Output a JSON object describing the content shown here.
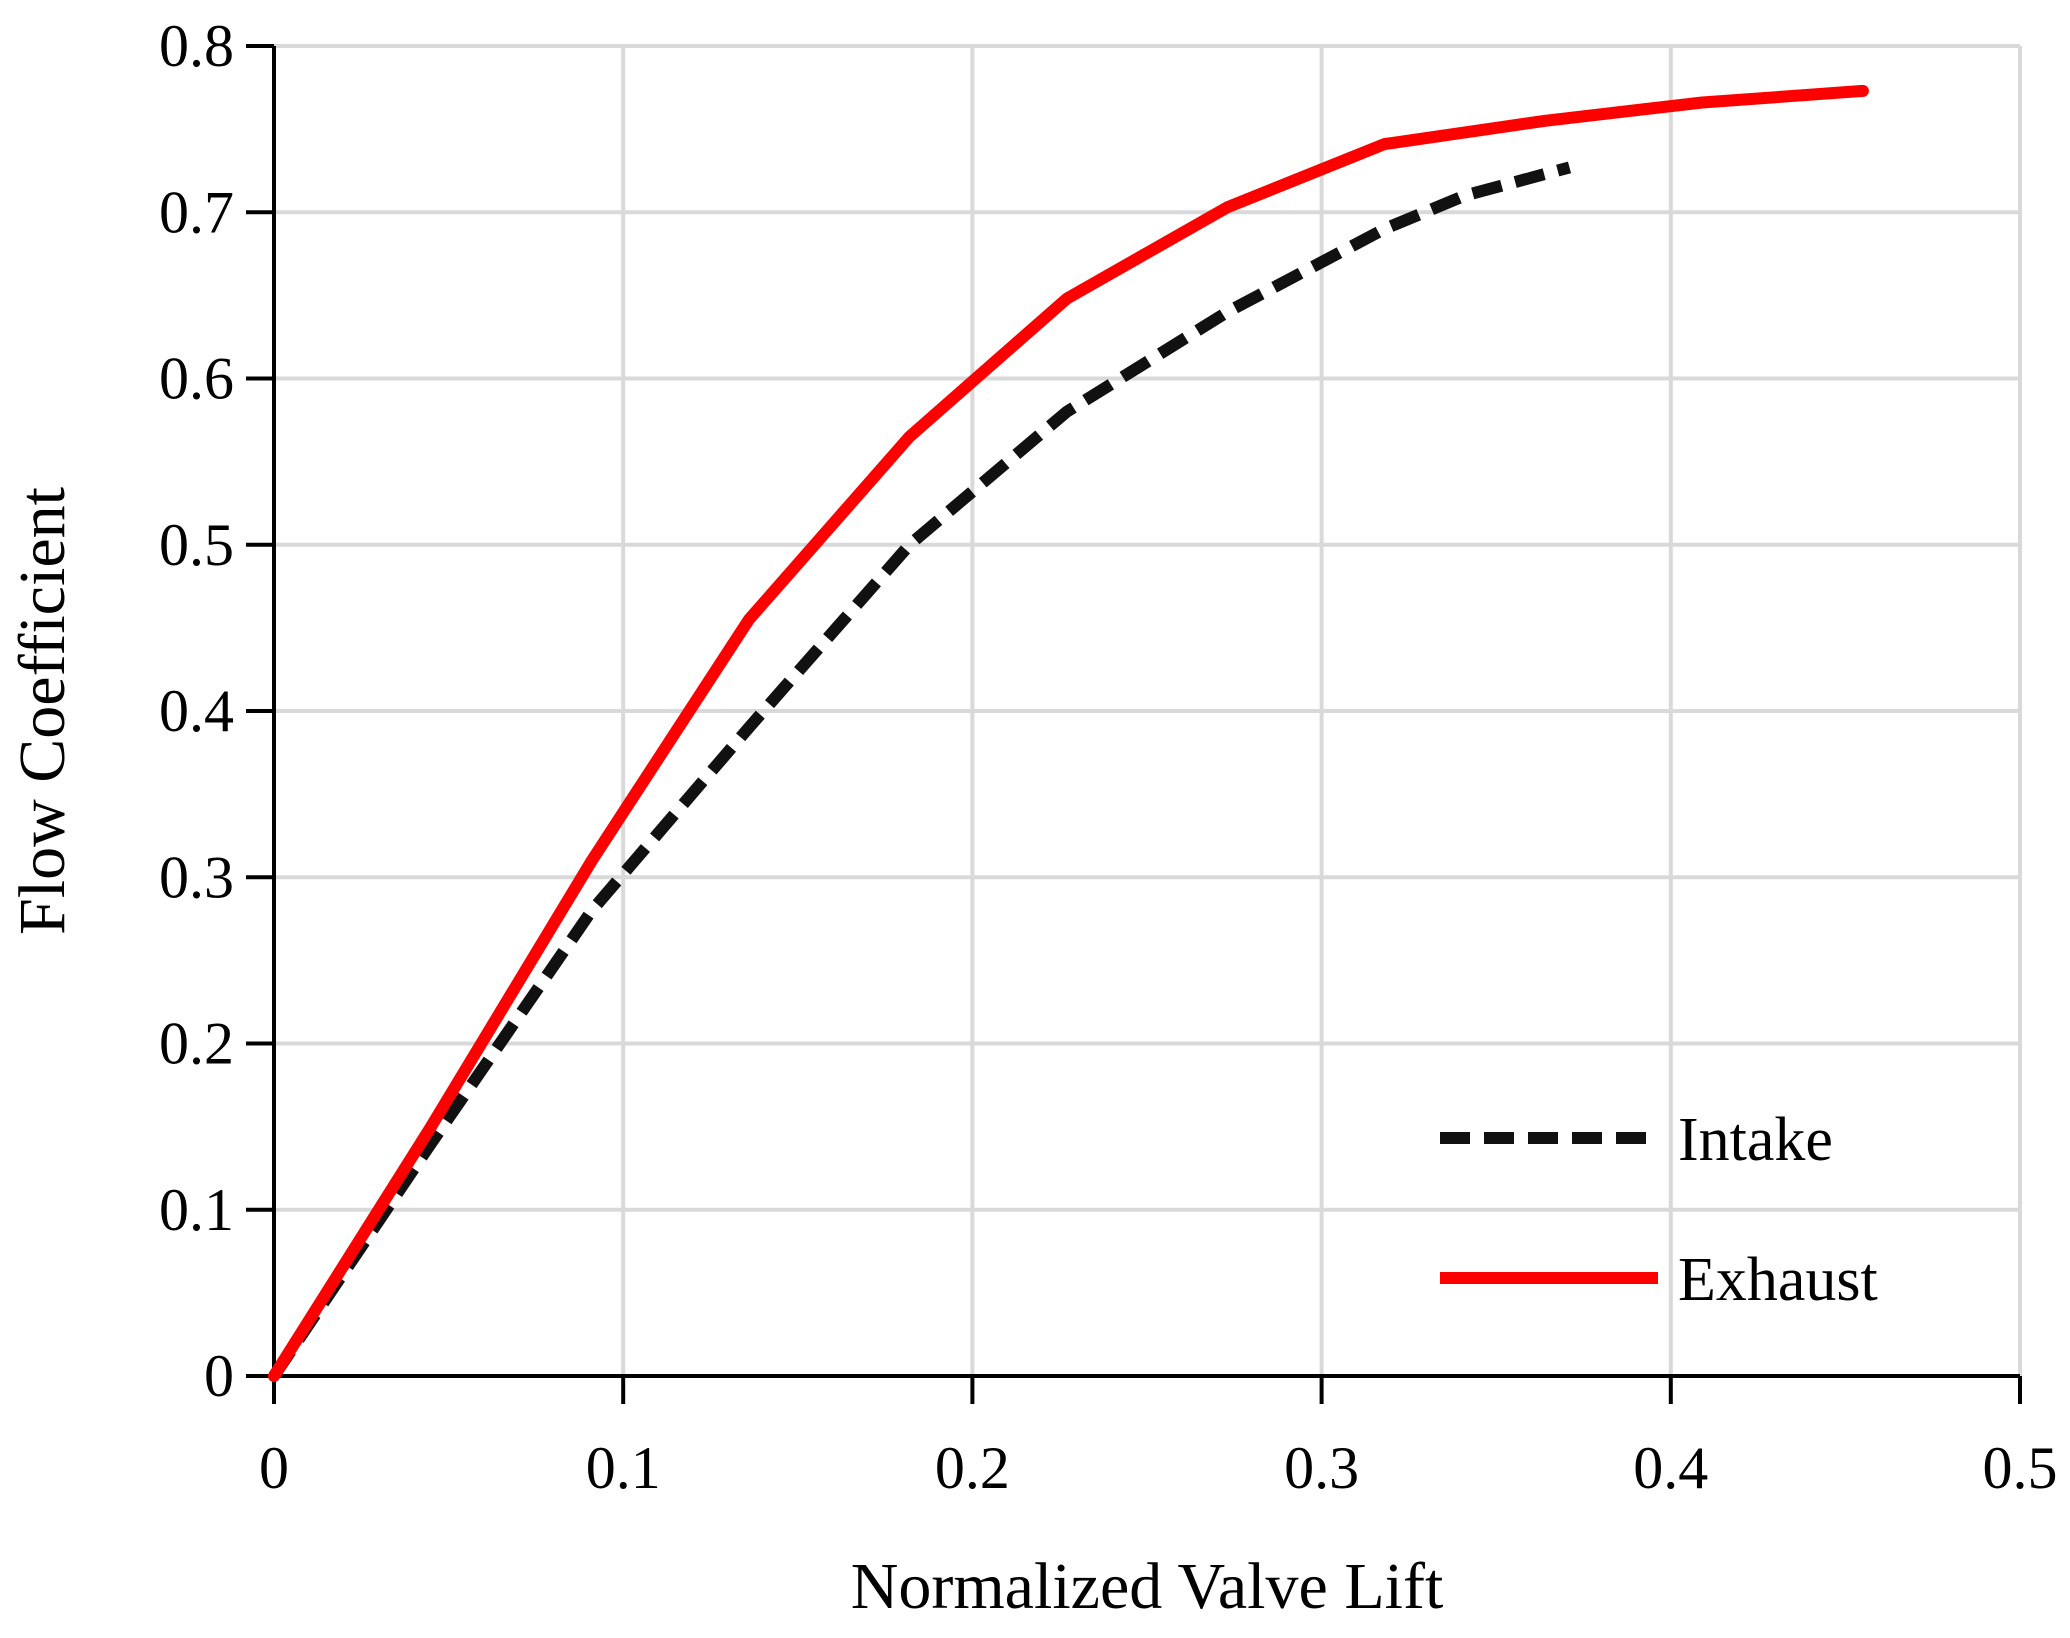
{
  "chart_data": {
    "type": "line",
    "title": "",
    "xlabel": "Normalized Valve Lift",
    "ylabel": "Flow Coefficient",
    "xlim": [
      0,
      0.5
    ],
    "ylim": [
      0,
      0.8
    ],
    "x_ticks": [
      0,
      0.1,
      0.2,
      0.3,
      0.4,
      0.5
    ],
    "x_tick_labels": [
      "0",
      "0.1",
      "0.2",
      "0.3",
      "0.4",
      "0.5"
    ],
    "y_ticks": [
      0,
      0.1,
      0.2,
      0.3,
      0.4,
      0.5,
      0.6,
      0.7,
      0.8
    ],
    "y_tick_labels": [
      "0",
      "0.1",
      "0.2",
      "0.3",
      "0.4",
      "0.5",
      "0.6",
      "0.7",
      "0.8"
    ],
    "grid": true,
    "legend_position": "bottom-right",
    "series": [
      {
        "name": "Intake",
        "style": "dashed",
        "color": "#111111",
        "x": [
          0,
          0.045,
          0.091,
          0.136,
          0.182,
          0.227,
          0.273,
          0.318,
          0.341,
          0.371
        ],
        "y": [
          0,
          0.14,
          0.28,
          0.39,
          0.5,
          0.58,
          0.64,
          0.69,
          0.71,
          0.727
        ]
      },
      {
        "name": "Exhaust",
        "style": "solid",
        "color": "#ff0000",
        "x": [
          0,
          0.045,
          0.091,
          0.136,
          0.182,
          0.227,
          0.273,
          0.318,
          0.364,
          0.409,
          0.455
        ],
        "y": [
          0,
          0.15,
          0.31,
          0.455,
          0.565,
          0.648,
          0.703,
          0.741,
          0.755,
          0.766,
          0.773
        ]
      }
    ]
  }
}
